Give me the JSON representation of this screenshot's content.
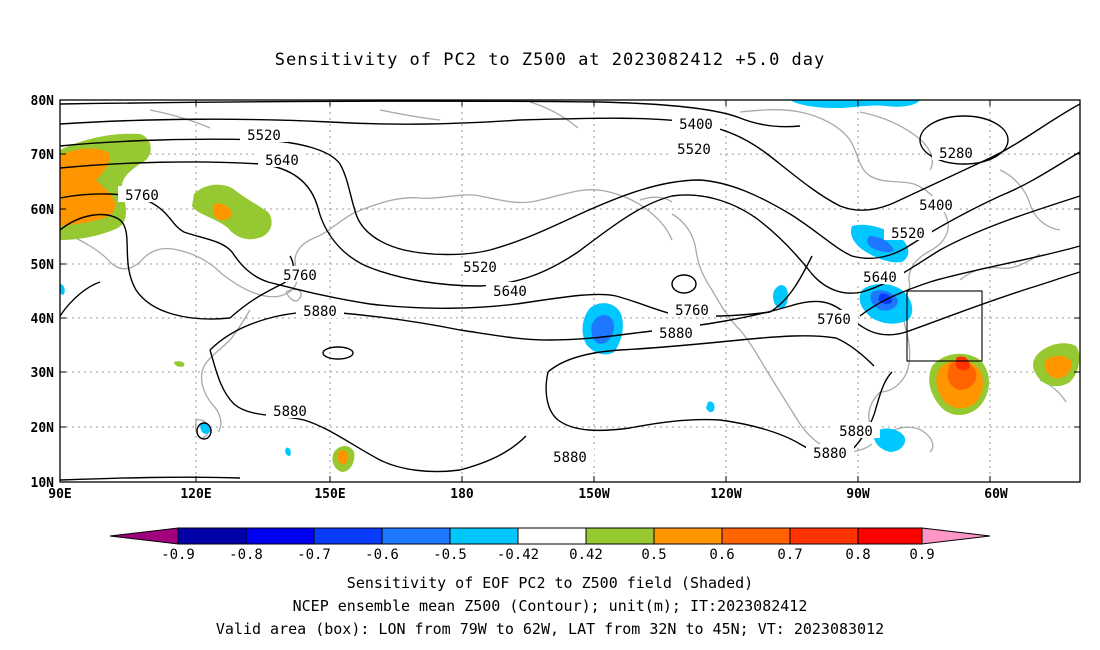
{
  "title": "Sensitivity of PC2 to Z500 at 2023082412 +5.0 day",
  "map": {
    "lat_labels": [
      "80N",
      "70N",
      "60N",
      "50N",
      "40N",
      "30N",
      "20N",
      "10N"
    ],
    "lon_labels": [
      "90E",
      "120E",
      "150E",
      "180",
      "150W",
      "120W",
      "90W",
      "60W"
    ],
    "contour_labels": [
      {
        "text": "5400"
      },
      {
        "text": "5520"
      },
      {
        "text": "5280"
      },
      {
        "text": "5400"
      },
      {
        "text": "5520"
      },
      {
        "text": "5640"
      },
      {
        "text": "5760"
      },
      {
        "text": "5520"
      },
      {
        "text": "5640"
      },
      {
        "text": "5520"
      },
      {
        "text": "5640"
      },
      {
        "text": "5760"
      },
      {
        "text": "5880"
      },
      {
        "text": "5760"
      },
      {
        "text": "5880"
      },
      {
        "text": "5760"
      },
      {
        "text": "5880"
      },
      {
        "text": "5880"
      },
      {
        "text": "5880"
      },
      {
        "text": "5880"
      }
    ],
    "valid_box": {
      "lon_from": "79W",
      "lon_to": "62W",
      "lat_from": "32N",
      "lat_to": "45N"
    }
  },
  "colorbar": {
    "labels": [
      "-0.9",
      "-0.8",
      "-0.7",
      "-0.6",
      "-0.5",
      "-0.42",
      "0.42",
      "0.5",
      "0.6",
      "0.7",
      "0.8",
      "0.9"
    ],
    "colors": [
      "#a0007d",
      "#0000a8",
      "#0000f0",
      "#0a3cff",
      "#1e78ff",
      "#00c8ff",
      "#ffffff",
      "#96c832",
      "#ff9600",
      "#ff6400",
      "#ff3200",
      "#ff0000",
      "#ff96c8"
    ]
  },
  "footer": {
    "line1": "Sensitivity of EOF PC2 to Z500 field (Shaded)",
    "line2": "NCEP ensemble mean Z500 (Contour); unit(m); IT:2023082412",
    "line3": "Valid area (box): LON from 79W to 62W, LAT from 32N to 45N; VT: 2023083012"
  }
}
